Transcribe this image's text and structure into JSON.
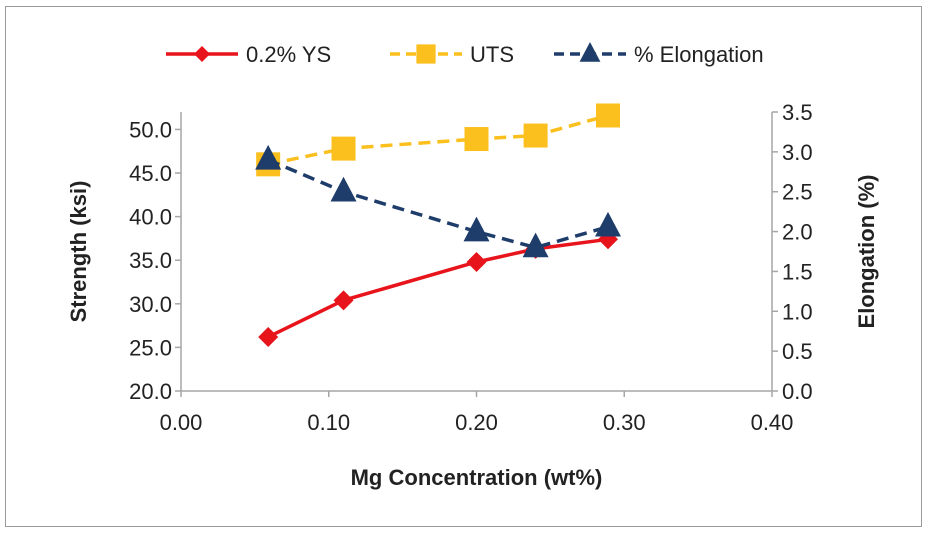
{
  "chart_data": {
    "type": "line",
    "xlabel": "Mg Concentration (wt%)",
    "ylabel": "Strength (ksi)",
    "y2label": "Elongation (%)",
    "xlim": [
      0.0,
      0.4
    ],
    "ylim": [
      20.0,
      52.0
    ],
    "y2lim": [
      0.0,
      3.5
    ],
    "x_ticks": [
      "0.00",
      "0.10",
      "0.20",
      "0.30",
      "0.40"
    ],
    "y_ticks": [
      "20.0",
      "25.0",
      "30.0",
      "35.0",
      "40.0",
      "45.0",
      "50.0"
    ],
    "y2_ticks": [
      "0.0",
      "0.5",
      "1.0",
      "1.5",
      "2.0",
      "2.5",
      "3.0",
      "3.5"
    ],
    "grid": false,
    "legend_position": "top",
    "series": [
      {
        "name": "0.2% YS",
        "axis": "left",
        "color": "#e8141c",
        "marker": "diamond",
        "line": "solid",
        "x": [
          0.059,
          0.11,
          0.2,
          0.24,
          0.289
        ],
        "values": [
          26.2,
          30.4,
          34.8,
          36.3,
          37.4
        ]
      },
      {
        "name": "UTS",
        "axis": "left",
        "color": "#fbbf1e",
        "marker": "square",
        "line": "dashed",
        "x": [
          0.059,
          0.11,
          0.2,
          0.24,
          0.289
        ],
        "values": [
          46.0,
          47.8,
          48.9,
          49.3,
          51.6
        ]
      },
      {
        "name": "% Elongation",
        "axis": "right",
        "color": "#1f3d6b",
        "marker": "triangle",
        "line": "dashed",
        "x": [
          0.059,
          0.11,
          0.2,
          0.24,
          0.289
        ],
        "values": [
          2.9,
          2.5,
          2.0,
          1.8,
          2.06
        ]
      }
    ]
  }
}
